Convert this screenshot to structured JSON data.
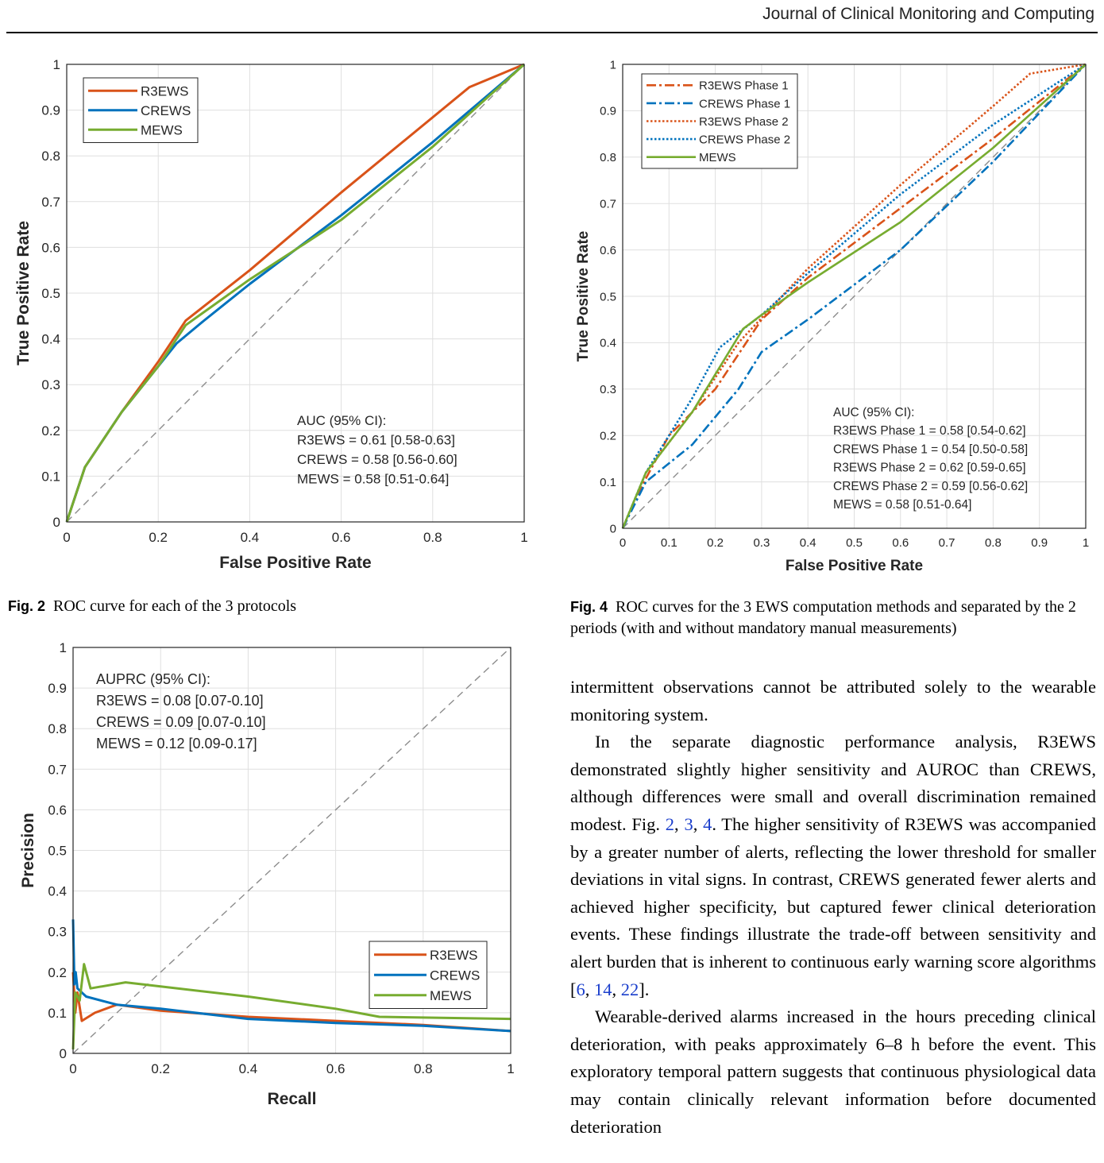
{
  "header": {
    "journal": "Journal of Clinical Monitoring and Computing"
  },
  "figures": {
    "fig2": {
      "label": "Fig. 2",
      "caption": "ROC curve for each of the 3 protocols",
      "chart_data": {
        "type": "line",
        "xlabel": "False Positive Rate",
        "ylabel": "True Positive Rate",
        "xlim": [
          0,
          1
        ],
        "ylim": [
          0,
          1
        ],
        "xticks": [
          "0",
          "0.2",
          "0.4",
          "0.6",
          "0.8",
          "1"
        ],
        "yticks": [
          "0",
          "0.1",
          "0.2",
          "0.3",
          "0.4",
          "0.5",
          "0.6",
          "0.7",
          "0.8",
          "0.9",
          "1"
        ],
        "grid": true,
        "legend_position": "top-left",
        "reference_line": true,
        "series": [
          {
            "name": "R3EWS",
            "color": "#d95319",
            "style": "solid",
            "x": [
              0,
              0.04,
              0.12,
              0.2,
              0.26,
              0.4,
              0.6,
              0.88,
              1
            ],
            "y": [
              0,
              0.12,
              0.24,
              0.35,
              0.44,
              0.55,
              0.72,
              0.95,
              1
            ]
          },
          {
            "name": "CREWS",
            "color": "#0072bd",
            "style": "solid",
            "x": [
              0,
              0.04,
              0.12,
              0.2,
              0.24,
              0.3,
              0.4,
              0.6,
              0.8,
              1
            ],
            "y": [
              0,
              0.12,
              0.24,
              0.34,
              0.39,
              0.44,
              0.52,
              0.67,
              0.83,
              1
            ]
          },
          {
            "name": "MEWS",
            "color": "#77ac30",
            "style": "solid",
            "x": [
              0,
              0.04,
              0.12,
              0.2,
              0.26,
              0.4,
              0.6,
              0.8,
              1
            ],
            "y": [
              0,
              0.12,
              0.24,
              0.34,
              0.43,
              0.53,
              0.66,
              0.82,
              1
            ]
          }
        ],
        "annotation": [
          "AUC (95% CI):",
          "R3EWS = 0.61 [0.58-0.63]",
          "CREWS = 0.58 [0.56-0.60]",
          "MEWS  = 0.58 [0.51-0.64]"
        ]
      }
    },
    "fig4": {
      "label": "Fig. 4",
      "caption": "ROC curves for the 3 EWS computation methods and separated by the 2 periods (with and without mandatory manual measurements)",
      "chart_data": {
        "type": "line",
        "xlabel": "False Positive Rate",
        "ylabel": "True Positive Rate",
        "xlim": [
          0,
          1
        ],
        "ylim": [
          0,
          1
        ],
        "xticks": [
          "0",
          "0.1",
          "0.2",
          "0.3",
          "0.4",
          "0.5",
          "0.6",
          "0.7",
          "0.8",
          "0.9",
          "1"
        ],
        "yticks": [
          "0",
          "0.1",
          "0.2",
          "0.3",
          "0.4",
          "0.5",
          "0.6",
          "0.7",
          "0.8",
          "0.9",
          "1"
        ],
        "grid": true,
        "legend_position": "top-left",
        "reference_line": true,
        "series": [
          {
            "name": "R3EWS Phase 1",
            "color": "#d95319",
            "style": "dashdot",
            "x": [
              0,
              0.03,
              0.1,
              0.2,
              0.3,
              0.4,
              0.6,
              0.8,
              1
            ],
            "y": [
              0,
              0.07,
              0.2,
              0.3,
              0.45,
              0.54,
              0.69,
              0.84,
              1
            ]
          },
          {
            "name": "CREWS Phase 1",
            "color": "#0072bd",
            "style": "dashdot",
            "x": [
              0,
              0.05,
              0.15,
              0.25,
              0.3,
              0.4,
              0.6,
              0.8,
              1
            ],
            "y": [
              0,
              0.1,
              0.18,
              0.3,
              0.38,
              0.45,
              0.6,
              0.79,
              1
            ]
          },
          {
            "name": "R3EWS Phase 2",
            "color": "#d95319",
            "style": "dotted",
            "x": [
              0,
              0.05,
              0.15,
              0.25,
              0.4,
              0.6,
              0.8,
              0.88,
              1
            ],
            "y": [
              0,
              0.12,
              0.25,
              0.4,
              0.56,
              0.74,
              0.91,
              0.98,
              1
            ]
          },
          {
            "name": "CREWS Phase 2",
            "color": "#0072bd",
            "style": "dotted",
            "x": [
              0,
              0.05,
              0.15,
              0.21,
              0.3,
              0.4,
              0.6,
              0.8,
              1
            ],
            "y": [
              0,
              0.12,
              0.28,
              0.39,
              0.46,
              0.55,
              0.72,
              0.87,
              1
            ]
          },
          {
            "name": "MEWS",
            "color": "#77ac30",
            "style": "solid",
            "x": [
              0,
              0.05,
              0.15,
              0.26,
              0.3,
              0.4,
              0.6,
              0.8,
              1
            ],
            "y": [
              0,
              0.12,
              0.25,
              0.43,
              0.46,
              0.53,
              0.66,
              0.82,
              1
            ]
          }
        ],
        "annotation": [
          "AUC (95% CI):",
          "R3EWS Phase 1 = 0.58 [0.54-0.62]",
          "CREWS Phase 1 = 0.54 [0.50-0.58]",
          "R3EWS Phase 2 = 0.62 [0.59-0.65]",
          "CREWS Phase 2 = 0.59 [0.56-0.62]",
          "MEWS = 0.58 [0.51-0.64]"
        ]
      }
    },
    "fig3": {
      "chart_data": {
        "type": "line",
        "xlabel": "Recall",
        "ylabel": "Precision",
        "xlim": [
          0,
          1
        ],
        "ylim": [
          0,
          1
        ],
        "xticks": [
          "0",
          "0.2",
          "0.4",
          "0.6",
          "0.8",
          "1"
        ],
        "yticks": [
          "0",
          "0.1",
          "0.2",
          "0.3",
          "0.4",
          "0.5",
          "0.6",
          "0.7",
          "0.8",
          "0.9",
          "1"
        ],
        "grid": true,
        "legend_position": "bottom-right",
        "reference_line": true,
        "series": [
          {
            "name": "R3EWS",
            "color": "#d95319",
            "style": "solid",
            "x": [
              0,
              0.005,
              0.01,
              0.02,
              0.05,
              0.1,
              0.2,
              0.4,
              0.6,
              0.8,
              1
            ],
            "y": [
              0.2,
              0.1,
              0.15,
              0.08,
              0.1,
              0.12,
              0.105,
              0.09,
              0.08,
              0.07,
              0.055
            ]
          },
          {
            "name": "CREWS",
            "color": "#0072bd",
            "style": "solid",
            "x": [
              0,
              0.003,
              0.006,
              0.01,
              0.03,
              0.1,
              0.2,
              0.4,
              0.6,
              0.8,
              1
            ],
            "y": [
              0.33,
              0.17,
              0.2,
              0.16,
              0.14,
              0.12,
              0.11,
              0.085,
              0.075,
              0.068,
              0.055
            ]
          },
          {
            "name": "MEWS",
            "color": "#77ac30",
            "style": "solid",
            "x": [
              0,
              0.005,
              0.015,
              0.025,
              0.04,
              0.12,
              0.2,
              0.4,
              0.6,
              0.7,
              1
            ],
            "y": [
              0.01,
              0.15,
              0.13,
              0.22,
              0.16,
              0.175,
              0.165,
              0.14,
              0.11,
              0.09,
              0.085
            ]
          }
        ],
        "annotation": [
          "AUPRC (95% CI):",
          "R3EWS = 0.08 [0.07-0.10]",
          "CREWS = 0.09 [0.07-0.10]",
          "MEWS  = 0.12 [0.09-0.17]"
        ]
      }
    }
  },
  "body": {
    "p1": "intermittent observations cannot be attributed solely to the wearable monitoring system.",
    "p2_a": "In the separate diagnostic performance analysis, R3EWS demonstrated slightly higher sensitivity and AUROC than CREWS, although differences were small and overall discrimination remained modest. Fig. ",
    "ref_2": "2",
    "sep1": ", ",
    "ref_3": "3",
    "sep2": ", ",
    "ref_4": "4",
    "p2_b": ". The higher sensitivity of R3EWS was accompanied by a greater number of alerts, reflecting the lower threshold for smaller deviations in vital signs. In contrast, CREWS generated fewer alerts and achieved higher specificity, but captured fewer clinical deterioration events. These findings illustrate the trade-off between sensitivity and alert burden that is inherent to continuous early warning score algorithms [",
    "ref_6": "6",
    "sep3": ", ",
    "ref_14": "14",
    "sep4": ", ",
    "ref_22": "22",
    "p2_c": "].",
    "p3": "Wearable-derived alarms increased in the hours preceding clinical deterioration, with peaks approximately 6–8 h before the event. This exploratory temporal pattern suggests that continuous physiological data may contain clinically relevant information before documented deterioration"
  }
}
